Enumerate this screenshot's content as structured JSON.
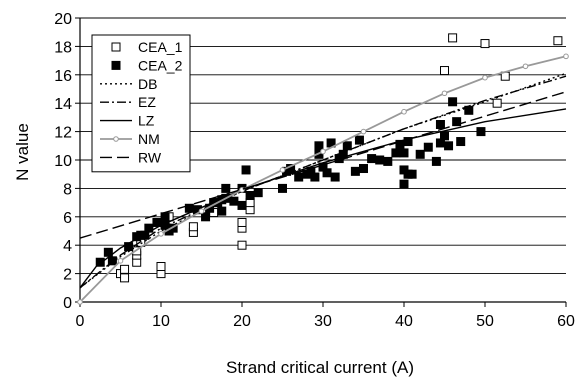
{
  "chart_data": {
    "type": "scatter",
    "title": "",
    "xlabel": "Strand critical current (A)",
    "ylabel": "N value",
    "xlim": [
      0,
      60
    ],
    "ylim": [
      0,
      20
    ],
    "xticks": [
      0,
      10,
      20,
      30,
      40,
      50,
      60
    ],
    "yticks": [
      0,
      2,
      4,
      6,
      8,
      10,
      12,
      14,
      16,
      18,
      20
    ],
    "grid": "horizontal",
    "legend_position": "top-left",
    "series": [
      {
        "name": "CEA_1",
        "kind": "scatter",
        "marker": "square-open",
        "color": "#000000",
        "points": [
          [
            5,
            2.0
          ],
          [
            5.5,
            1.7
          ],
          [
            5.5,
            2.3
          ],
          [
            7,
            2.8
          ],
          [
            7,
            3.3
          ],
          [
            7,
            3.6
          ],
          [
            7.5,
            4.2
          ],
          [
            10,
            2.0
          ],
          [
            10,
            2.5
          ],
          [
            11,
            6.0
          ],
          [
            14,
            4.9
          ],
          [
            14,
            5.3
          ],
          [
            16.5,
            6.3
          ],
          [
            20,
            4.0
          ],
          [
            20,
            5.2
          ],
          [
            20,
            5.6
          ],
          [
            21,
            6.5
          ],
          [
            21,
            7.0
          ],
          [
            45,
            16.3
          ],
          [
            46,
            18.6
          ],
          [
            50,
            18.2
          ],
          [
            51.5,
            14.0
          ],
          [
            52.5,
            15.9
          ],
          [
            59,
            18.4
          ]
        ]
      },
      {
        "name": "CEA_2",
        "kind": "scatter",
        "marker": "square-filled",
        "color": "#000000",
        "points": [
          [
            2.5,
            2.8
          ],
          [
            3.5,
            3.5
          ],
          [
            4,
            2.9
          ],
          [
            6,
            3.9
          ],
          [
            7,
            4.6
          ],
          [
            7.5,
            4.7
          ],
          [
            8,
            4.7
          ],
          [
            8.5,
            5.2
          ],
          [
            9.5,
            5.6
          ],
          [
            10.5,
            5.4
          ],
          [
            11,
            5.0
          ],
          [
            11.5,
            5.2
          ],
          [
            10.5,
            6.0
          ],
          [
            13.5,
            6.6
          ],
          [
            14.5,
            6.5
          ],
          [
            15.5,
            6.0
          ],
          [
            16,
            6.6
          ],
          [
            16.5,
            7.0
          ],
          [
            17,
            7.0
          ],
          [
            17.5,
            7.2
          ],
          [
            17.5,
            6.4
          ],
          [
            18,
            7.3
          ],
          [
            18,
            8.0
          ],
          [
            19,
            7.1
          ],
          [
            20,
            6.8
          ],
          [
            20,
            8.0
          ],
          [
            20.5,
            9.3
          ],
          [
            21,
            7.5
          ],
          [
            22,
            7.7
          ],
          [
            25,
            8.0
          ],
          [
            25.5,
            9.2
          ],
          [
            26,
            9.4
          ],
          [
            27,
            8.8
          ],
          [
            28,
            9.0
          ],
          [
            28.5,
            9.2
          ],
          [
            29,
            8.8
          ],
          [
            29.5,
            10.4
          ],
          [
            29.5,
            11.0
          ],
          [
            30,
            9.5
          ],
          [
            30.5,
            9.1
          ],
          [
            31,
            11.2
          ],
          [
            31.5,
            8.8
          ],
          [
            32,
            10.1
          ],
          [
            32.5,
            10.4
          ],
          [
            33,
            11.0
          ],
          [
            34,
            9.2
          ],
          [
            34.5,
            11.4
          ],
          [
            35,
            9.4
          ],
          [
            36,
            10.1
          ],
          [
            37,
            10.0
          ],
          [
            38,
            9.9
          ],
          [
            39,
            10.5
          ],
          [
            39.5,
            11.1
          ],
          [
            40,
            10.5
          ],
          [
            40,
            9.3
          ],
          [
            40,
            8.3
          ],
          [
            40.5,
            9.0
          ],
          [
            40.5,
            11.3
          ],
          [
            41,
            9.0
          ],
          [
            42,
            10.4
          ],
          [
            43,
            10.9
          ],
          [
            44,
            9.9
          ],
          [
            44.5,
            11.2
          ],
          [
            44.5,
            12.5
          ],
          [
            45,
            11.7
          ],
          [
            45.5,
            11.0
          ],
          [
            46,
            14.1
          ],
          [
            46.5,
            12.7
          ],
          [
            47,
            11.3
          ],
          [
            48,
            13.5
          ],
          [
            49.5,
            12.0
          ]
        ]
      },
      {
        "name": "DB",
        "kind": "line",
        "dash": "2,3",
        "color": "#000000",
        "points": [
          [
            0,
            1.0
          ],
          [
            5,
            3.2
          ],
          [
            10,
            5.0
          ],
          [
            20,
            7.8
          ],
          [
            30,
            10.0
          ],
          [
            40,
            12.2
          ],
          [
            50,
            14.1
          ],
          [
            60,
            16.1
          ]
        ]
      },
      {
        "name": "EZ",
        "kind": "line",
        "dash": "9,3,2,3",
        "color": "#000000",
        "points": [
          [
            0,
            1.0
          ],
          [
            5,
            3.3
          ],
          [
            10,
            5.2
          ],
          [
            20,
            7.8
          ],
          [
            30,
            10.0
          ],
          [
            40,
            12.2
          ],
          [
            50,
            14.2
          ],
          [
            60,
            15.9
          ]
        ]
      },
      {
        "name": "LZ",
        "kind": "line",
        "dash": "",
        "color": "#000000",
        "points": [
          [
            0,
            1.0
          ],
          [
            2,
            2.5
          ],
          [
            5,
            3.8
          ],
          [
            10,
            5.4
          ],
          [
            20,
            7.9
          ],
          [
            30,
            9.8
          ],
          [
            40,
            11.4
          ],
          [
            50,
            12.7
          ],
          [
            60,
            13.6
          ]
        ]
      },
      {
        "name": "NM",
        "kind": "line-marked",
        "dash": "",
        "color": "#999999",
        "points": [
          [
            0,
            0.0
          ],
          [
            5,
            2.9
          ],
          [
            10,
            4.8
          ],
          [
            15,
            6.4
          ],
          [
            20,
            7.9
          ],
          [
            25,
            9.3
          ],
          [
            30,
            10.6
          ],
          [
            35,
            12.0
          ],
          [
            40,
            13.4
          ],
          [
            45,
            14.7
          ],
          [
            50,
            15.8
          ],
          [
            55,
            16.6
          ],
          [
            60,
            17.3
          ]
        ]
      },
      {
        "name": "RW",
        "kind": "line",
        "dash": "12,5",
        "color": "#000000",
        "points": [
          [
            0,
            4.5
          ],
          [
            60,
            14.8
          ]
        ]
      }
    ]
  }
}
